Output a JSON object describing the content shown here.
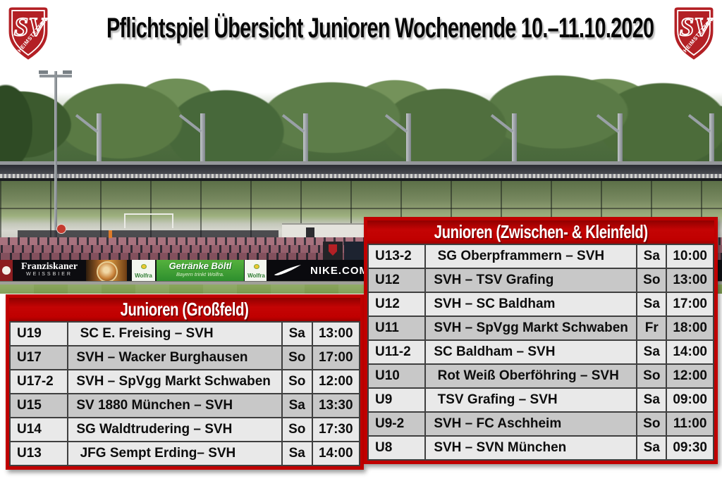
{
  "header": {
    "title": "Pflichtspiel Übersicht Junioren Wochenende 10.–11.10.2020"
  },
  "logo": {
    "initials": "SV",
    "name": "HEIMSTETTEN"
  },
  "colors": {
    "accent_red": "#c00000",
    "row_light": "#e9e9e9",
    "row_dark": "#c8c8c8",
    "cell_border": "#3f3f3f",
    "crest_red": "#b32025",
    "seat_maroon": "#95606d",
    "banner_green": "#3aa33a",
    "grass_green": "#8aa65c"
  },
  "tables": {
    "grossfeld": {
      "title": "Junioren (Großfeld)",
      "rows": [
        {
          "team": "U19",
          "match": " SC E. Freising – SVH",
          "day": "Sa",
          "time": "13:00",
          "shade": "light"
        },
        {
          "team": "U17",
          "match": "SVH – Wacker Burghausen",
          "day": "So",
          "time": "17:00",
          "shade": "dark"
        },
        {
          "team": "U17-2",
          "match": "SVH – SpVgg Markt Schwaben",
          "day": "So",
          "time": "12:00",
          "shade": "light"
        },
        {
          "team": "U15",
          "match": "SV 1880 München – SVH",
          "day": "Sa",
          "time": "13:30",
          "shade": "dark"
        },
        {
          "team": "U14",
          "match": "SG Waldtrudering – SVH",
          "day": "So",
          "time": "17:30",
          "shade": "light"
        },
        {
          "team": "U13",
          "match": " JFG Sempt Erding– SVH",
          "day": "Sa",
          "time": "14:00",
          "shade": "light"
        }
      ]
    },
    "kleinfeld": {
      "title": "Junioren (Zwischen- & Kleinfeld)",
      "rows": [
        {
          "team": "U13-2",
          "match": " SG Oberpframmern – SVH",
          "day": "Sa",
          "time": "10:00",
          "shade": "light"
        },
        {
          "team": "U12",
          "match": "SVH – TSV Grafing",
          "day": "So",
          "time": "13:00",
          "shade": "dark"
        },
        {
          "team": "U12",
          "match": "SVH – SC Baldham",
          "day": "Sa",
          "time": "17:00",
          "shade": "light"
        },
        {
          "team": "U11",
          "match": "SVH – SpVgg Markt Schwaben",
          "day": "Fr",
          "time": "18:00",
          "shade": "dark"
        },
        {
          "team": "U11-2",
          "match": "SC Baldham – SVH",
          "day": "Sa",
          "time": "14:00",
          "shade": "light"
        },
        {
          "team": "U10",
          "match": " Rot Weiß Oberföhring – SVH",
          "day": "So",
          "time": "12:00",
          "shade": "dark"
        },
        {
          "team": "U9",
          "match": " TSV Grafing – SVH",
          "day": "Sa",
          "time": "09:00",
          "shade": "light"
        },
        {
          "team": "U9-2",
          "match": "SVH – FC Aschheim",
          "day": "So",
          "time": "11:00",
          "shade": "dark"
        },
        {
          "team": "U8",
          "match": "SVH – SVN München",
          "day": "Sa",
          "time": "09:30",
          "shade": "light"
        }
      ]
    }
  },
  "photo": {
    "banners": {
      "franziskaner": {
        "line1": "Franziskaner",
        "line2": "WEISSBIER"
      },
      "wolfra_left": {
        "label": "Wolfra"
      },
      "boeltl": {
        "line1": "Getränke Böltl",
        "line2": "Bayern trinkt Wolfra."
      },
      "wolfra_right": {
        "label": "Wolfra"
      },
      "nike": {
        "label": "NIKE.COM"
      }
    }
  }
}
